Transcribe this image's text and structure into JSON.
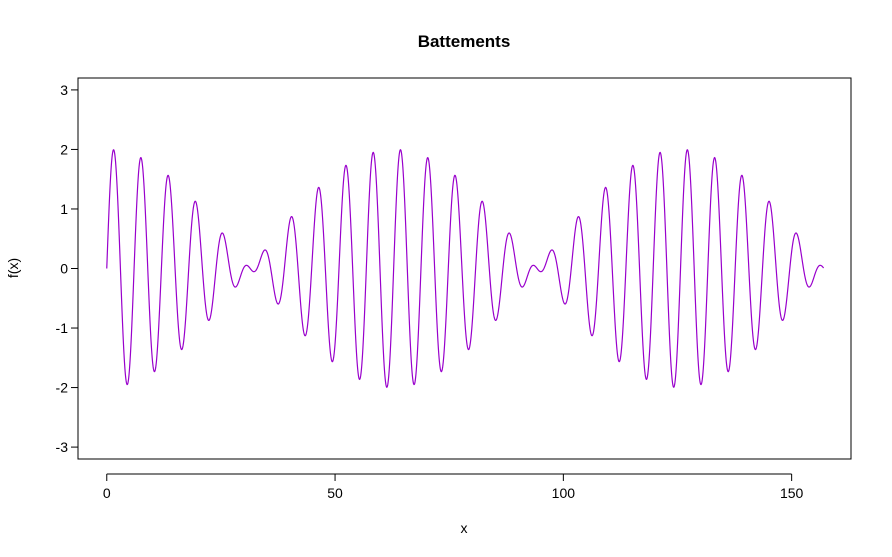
{
  "chart_data": {
    "type": "line",
    "title": "Battements",
    "xlabel": "x",
    "ylabel": "f(x)",
    "xlim": [
      -6.3,
      163
    ],
    "ylim": [
      -3.2,
      3.2
    ],
    "x_ticks": [
      0,
      50,
      100,
      150
    ],
    "y_ticks": [
      -3,
      -2,
      -1,
      0,
      1,
      2,
      3
    ],
    "grid": false,
    "legend": "none",
    "series": [
      {
        "formula": "sin(x) + sin(1.1*x)",
        "x_range": [
          0,
          157
        ],
        "color": "#9900CC"
      }
    ]
  }
}
